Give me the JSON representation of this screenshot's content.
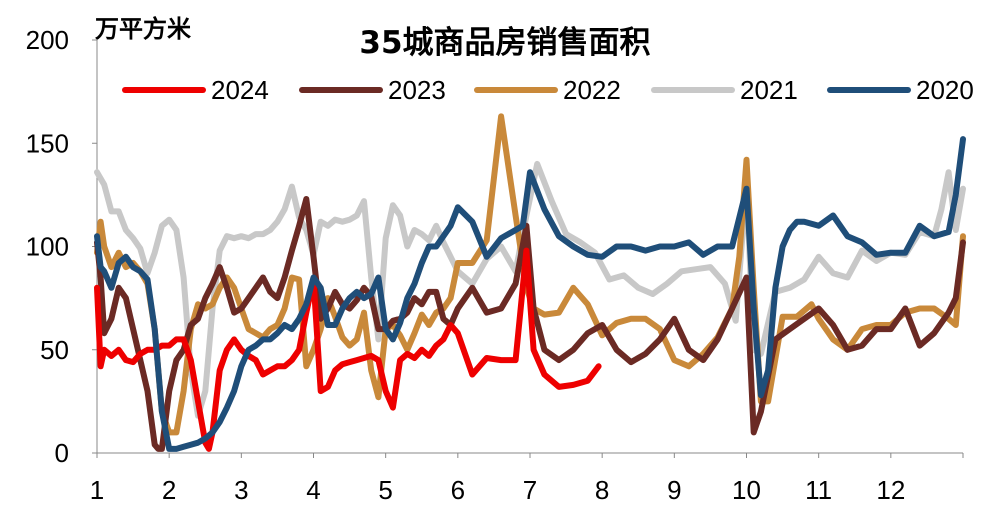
{
  "chart_data": {
    "type": "line",
    "title": "35城商品房销售面积",
    "ylabel": "万平方米",
    "xlabel": "",
    "ylim": [
      0,
      200
    ],
    "xlim": [
      1,
      13
    ],
    "yticks": [
      "0",
      "50",
      "100",
      "150",
      "200"
    ],
    "xticks": [
      "1",
      "2",
      "3",
      "4",
      "5",
      "6",
      "7",
      "8",
      "9",
      "10",
      "11",
      "12"
    ],
    "grid": false,
    "legend_position": "top",
    "series": [
      {
        "name": "2021",
        "color": "#c8c8c8",
        "x": [
          1.0,
          1.1,
          1.2,
          1.3,
          1.4,
          1.5,
          1.6,
          1.7,
          1.8,
          1.9,
          2.0,
          2.1,
          2.2,
          2.3,
          2.4,
          2.5,
          2.6,
          2.7,
          2.8,
          2.9,
          3.0,
          3.1,
          3.2,
          3.3,
          3.4,
          3.5,
          3.6,
          3.7,
          3.8,
          3.9,
          4.0,
          4.1,
          4.2,
          4.3,
          4.4,
          4.5,
          4.6,
          4.7,
          4.8,
          4.9,
          5.0,
          5.1,
          5.2,
          5.3,
          5.4,
          5.5,
          5.6,
          5.7,
          5.8,
          5.9,
          6.0,
          6.2,
          6.4,
          6.6,
          6.8,
          6.95,
          7.1,
          7.3,
          7.5,
          7.7,
          7.9,
          8.1,
          8.3,
          8.5,
          8.7,
          8.9,
          9.1,
          9.3,
          9.5,
          9.7,
          9.85,
          10.0,
          10.1,
          10.2,
          10.4,
          10.6,
          10.8,
          11.0,
          11.2,
          11.4,
          11.6,
          11.8,
          12.0,
          12.2,
          12.4,
          12.6,
          12.7,
          12.8,
          12.9,
          13.0
        ],
        "values": [
          136,
          130,
          117,
          117,
          108,
          104,
          99,
          87,
          97,
          110,
          113,
          108,
          85,
          40,
          18,
          30,
          70,
          98,
          105,
          104,
          105,
          104,
          106,
          106,
          108,
          112,
          118,
          129,
          114,
          108,
          96,
          112,
          110,
          113,
          112,
          113,
          115,
          122,
          85,
          55,
          104,
          120,
          115,
          100,
          108,
          106,
          103,
          110,
          102,
          95,
          88,
          82,
          94,
          100,
          88,
          115,
          140,
          122,
          106,
          102,
          97,
          84,
          86,
          80,
          77,
          82,
          88,
          89,
          90,
          82,
          64,
          130,
          50,
          48,
          78,
          80,
          84,
          95,
          87,
          85,
          98,
          93,
          97,
          96,
          107,
          105,
          118,
          136,
          108,
          128
        ]
      },
      {
        "name": "2022",
        "color": "#c9893a",
        "x": [
          1.0,
          1.05,
          1.1,
          1.2,
          1.3,
          1.4,
          1.5,
          1.6,
          1.7,
          1.8,
          1.9,
          2.0,
          2.1,
          2.2,
          2.3,
          2.4,
          2.5,
          2.6,
          2.7,
          2.8,
          2.9,
          3.0,
          3.1,
          3.2,
          3.3,
          3.4,
          3.5,
          3.6,
          3.7,
          3.8,
          3.9,
          4.0,
          4.1,
          4.2,
          4.3,
          4.4,
          4.5,
          4.6,
          4.7,
          4.8,
          4.9,
          5.0,
          5.1,
          5.2,
          5.3,
          5.4,
          5.5,
          5.6,
          5.7,
          5.8,
          5.9,
          6.0,
          6.2,
          6.4,
          6.6,
          6.8,
          6.95,
          7.05,
          7.2,
          7.4,
          7.6,
          7.8,
          8.0,
          8.2,
          8.4,
          8.6,
          8.8,
          9.0,
          9.2,
          9.4,
          9.6,
          9.8,
          9.9,
          10.0,
          10.1,
          10.2,
          10.3,
          10.5,
          10.7,
          10.9,
          11.0,
          11.2,
          11.4,
          11.6,
          11.8,
          12.0,
          12.2,
          12.4,
          12.6,
          12.8,
          12.9,
          13.0
        ],
        "values": [
          97,
          112,
          100,
          90,
          97,
          90,
          92,
          88,
          82,
          60,
          20,
          10,
          10,
          30,
          60,
          72,
          70,
          72,
          80,
          85,
          80,
          70,
          60,
          58,
          56,
          60,
          62,
          70,
          85,
          84,
          42,
          50,
          60,
          75,
          66,
          56,
          52,
          55,
          68,
          40,
          27,
          60,
          62,
          57,
          50,
          58,
          67,
          62,
          68,
          70,
          75,
          92,
          92,
          103,
          163,
          115,
          80,
          70,
          67,
          68,
          80,
          72,
          57,
          63,
          65,
          65,
          60,
          45,
          42,
          48,
          56,
          70,
          95,
          142,
          80,
          25,
          25,
          66,
          66,
          72,
          65,
          55,
          50,
          60,
          62,
          62,
          68,
          70,
          70,
          65,
          62,
          105
        ]
      },
      {
        "name": "2023",
        "color": "#6b2a24",
        "x": [
          1.0,
          1.05,
          1.1,
          1.2,
          1.3,
          1.4,
          1.5,
          1.6,
          1.7,
          1.8,
          1.85,
          1.9,
          2.0,
          2.1,
          2.2,
          2.3,
          2.4,
          2.5,
          2.6,
          2.7,
          2.8,
          2.9,
          3.0,
          3.1,
          3.2,
          3.3,
          3.4,
          3.5,
          3.6,
          3.7,
          3.8,
          3.9,
          4.0,
          4.1,
          4.2,
          4.3,
          4.4,
          4.5,
          4.6,
          4.7,
          4.8,
          4.9,
          5.0,
          5.1,
          5.2,
          5.3,
          5.4,
          5.5,
          5.6,
          5.7,
          5.8,
          5.9,
          6.0,
          6.2,
          6.4,
          6.6,
          6.8,
          6.95,
          7.05,
          7.2,
          7.4,
          7.6,
          7.8,
          8.0,
          8.2,
          8.4,
          8.6,
          8.8,
          9.0,
          9.2,
          9.4,
          9.6,
          9.8,
          10.0,
          10.1,
          10.2,
          10.4,
          10.6,
          10.8,
          11.0,
          11.2,
          11.4,
          11.6,
          11.8,
          12.0,
          12.2,
          12.4,
          12.6,
          12.8,
          12.9,
          13.0
        ],
        "values": [
          102,
          85,
          58,
          65,
          80,
          75,
          60,
          45,
          30,
          4,
          2,
          2,
          30,
          45,
          50,
          62,
          65,
          75,
          82,
          90,
          80,
          68,
          70,
          75,
          80,
          85,
          78,
          75,
          85,
          98,
          110,
          123,
          95,
          65,
          70,
          78,
          72,
          70,
          74,
          80,
          76,
          60,
          60,
          64,
          65,
          68,
          75,
          72,
          78,
          78,
          65,
          62,
          70,
          80,
          68,
          70,
          82,
          110,
          70,
          50,
          45,
          50,
          58,
          62,
          50,
          44,
          48,
          55,
          65,
          50,
          45,
          55,
          70,
          85,
          10,
          20,
          55,
          60,
          65,
          70,
          62,
          50,
          52,
          60,
          60,
          70,
          52,
          58,
          68,
          75,
          102
        ]
      },
      {
        "name": "2024",
        "color": "#ee0000",
        "x": [
          1.0,
          1.05,
          1.1,
          1.2,
          1.3,
          1.4,
          1.5,
          1.6,
          1.7,
          1.8,
          1.9,
          2.0,
          2.1,
          2.2,
          2.3,
          2.4,
          2.5,
          2.55,
          2.6,
          2.7,
          2.8,
          2.9,
          3.0,
          3.1,
          3.2,
          3.3,
          3.4,
          3.5,
          3.6,
          3.7,
          3.8,
          3.9,
          4.0,
          4.1,
          4.2,
          4.3,
          4.4,
          4.5,
          4.6,
          4.7,
          4.8,
          4.9,
          5.0,
          5.1,
          5.2,
          5.3,
          5.4,
          5.5,
          5.6,
          5.7,
          5.8,
          5.9,
          6.0,
          6.2,
          6.4,
          6.6,
          6.8,
          6.95,
          7.05,
          7.2,
          7.4,
          7.6,
          7.8,
          7.95
        ],
        "values": [
          80,
          42,
          50,
          47,
          50,
          45,
          44,
          48,
          50,
          50,
          52,
          52,
          55,
          55,
          45,
          25,
          5,
          2,
          10,
          40,
          50,
          55,
          50,
          47,
          45,
          38,
          40,
          42,
          42,
          45,
          50,
          68,
          84,
          30,
          32,
          40,
          43,
          44,
          45,
          46,
          47,
          45,
          30,
          22,
          45,
          48,
          46,
          50,
          47,
          52,
          55,
          62,
          58,
          38,
          46,
          45,
          45,
          98,
          50,
          38,
          32,
          33,
          35,
          42
        ]
      },
      {
        "name": "2020",
        "color": "#1f4e79",
        "x": [
          1.0,
          1.05,
          1.1,
          1.2,
          1.3,
          1.4,
          1.5,
          1.6,
          1.7,
          1.8,
          1.9,
          2.0,
          2.1,
          2.2,
          2.3,
          2.4,
          2.5,
          2.6,
          2.7,
          2.8,
          2.9,
          3.0,
          3.1,
          3.2,
          3.3,
          3.4,
          3.5,
          3.6,
          3.7,
          3.8,
          3.9,
          4.0,
          4.1,
          4.2,
          4.3,
          4.4,
          4.5,
          4.6,
          4.7,
          4.8,
          4.9,
          5.0,
          5.1,
          5.2,
          5.3,
          5.4,
          5.5,
          5.6,
          5.7,
          5.8,
          5.9,
          6.0,
          6.2,
          6.4,
          6.6,
          6.8,
          6.9,
          7.0,
          7.2,
          7.4,
          7.6,
          7.8,
          8.0,
          8.2,
          8.4,
          8.6,
          8.8,
          9.0,
          9.2,
          9.4,
          9.6,
          9.8,
          10.0,
          10.1,
          10.2,
          10.3,
          10.4,
          10.5,
          10.6,
          10.7,
          10.8,
          11.0,
          11.2,
          11.4,
          11.6,
          11.8,
          12.0,
          12.2,
          12.4,
          12.6,
          12.8,
          12.9,
          13.0
        ],
        "values": [
          105,
          90,
          88,
          80,
          92,
          95,
          90,
          88,
          84,
          60,
          20,
          2,
          2,
          3,
          4,
          5,
          7,
          10,
          15,
          22,
          30,
          42,
          50,
          52,
          55,
          55,
          58,
          62,
          60,
          65,
          72,
          85,
          80,
          62,
          62,
          70,
          75,
          78,
          75,
          77,
          85,
          60,
          55,
          63,
          75,
          82,
          92,
          100,
          100,
          105,
          110,
          119,
          112,
          95,
          104,
          108,
          110,
          136,
          118,
          105,
          100,
          96,
          95,
          100,
          100,
          98,
          100,
          100,
          102,
          96,
          100,
          100,
          128,
          70,
          28,
          40,
          80,
          100,
          108,
          112,
          112,
          110,
          115,
          105,
          102,
          96,
          97,
          97,
          110,
          105,
          107,
          125,
          152
        ]
      }
    ]
  }
}
